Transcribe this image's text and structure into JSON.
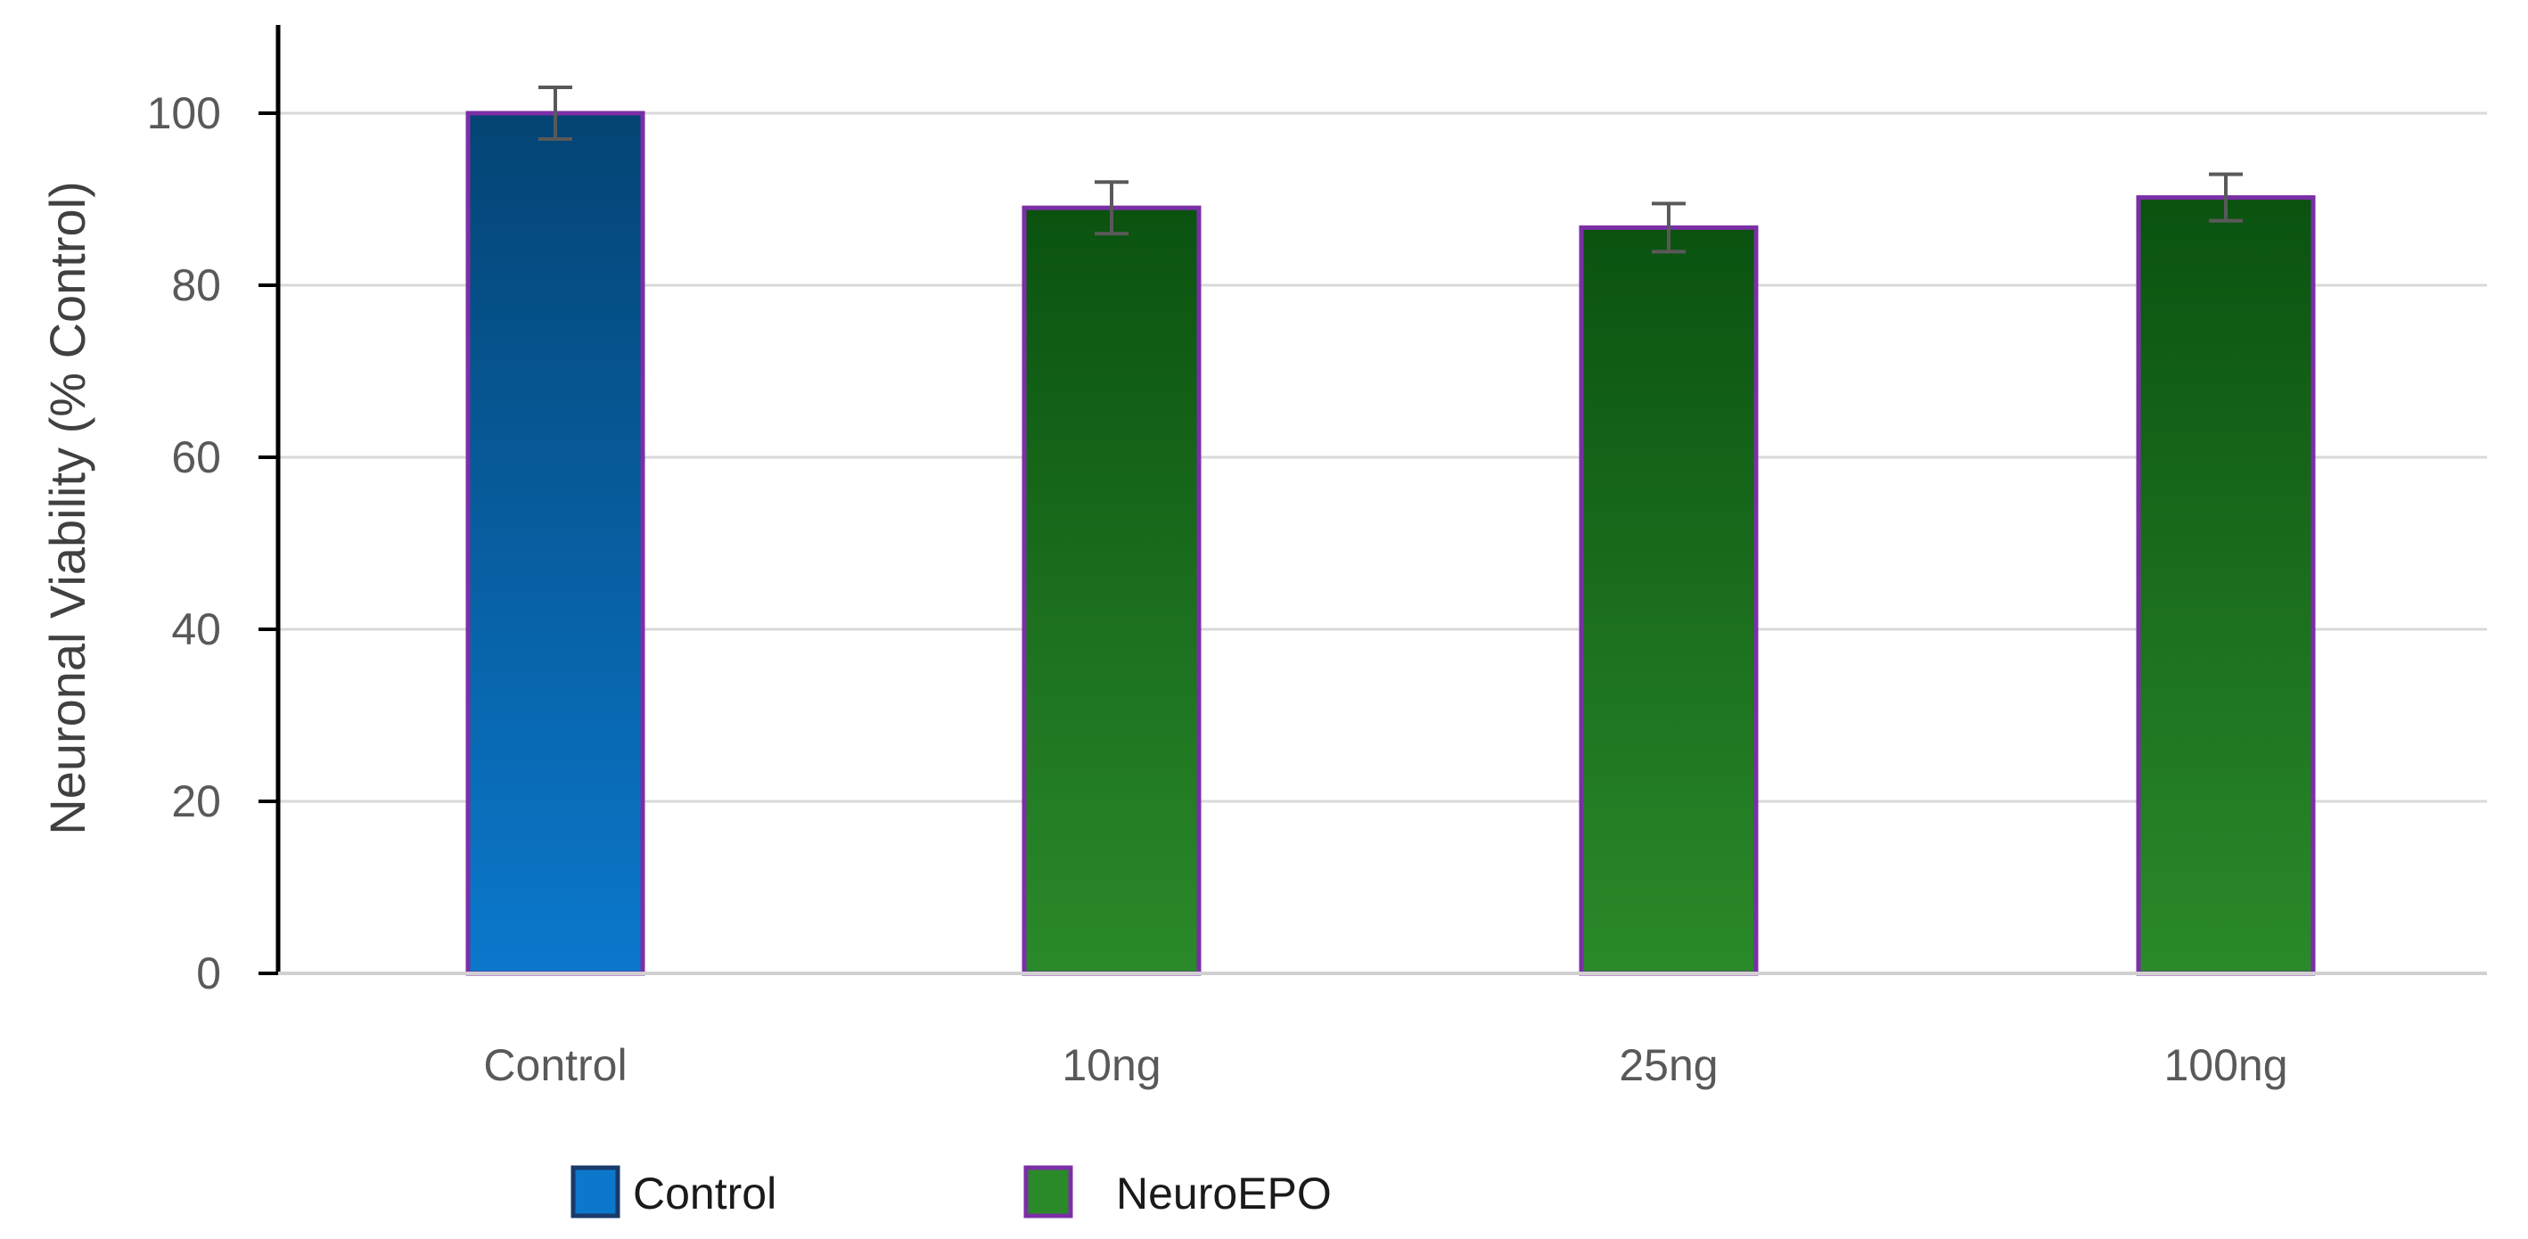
{
  "chart_data": {
    "type": "bar",
    "categories": [
      "Control",
      "10ng",
      "25ng",
      "100ng"
    ],
    "values": [
      100,
      89,
      86.7,
      90.2
    ],
    "errors": [
      3,
      3,
      2.8,
      2.7
    ],
    "bar_series": [
      "Control",
      "NeuroEPO",
      "NeuroEPO",
      "NeuroEPO"
    ],
    "series": [
      {
        "name": "Control",
        "color_top": "#044474",
        "color_bottom": "#0b78cc",
        "border": "#7b2fa6"
      },
      {
        "name": "NeuroEPO",
        "color_top": "#0b5210",
        "color_bottom": "#2a8a2a",
        "border": "#7b2fa6"
      }
    ],
    "title": "",
    "xlabel": "",
    "ylabel": "Neuronal Viability (% Control)",
    "ylim": [
      0,
      100
    ],
    "yticks": [
      0,
      20,
      40,
      60,
      80,
      100
    ],
    "grid": true,
    "legend": {
      "placement": "bottom-left",
      "items": [
        {
          "label": "Control",
          "color": "#0b78cc",
          "border": "#1a3a6a"
        },
        {
          "label": "NeuroEPO",
          "color": "#2a8a2a",
          "border": "#7b2fa6"
        }
      ]
    },
    "colors": {
      "grid": "#d9d9d9",
      "axis": "#000000",
      "error_bar": "#595959"
    }
  }
}
